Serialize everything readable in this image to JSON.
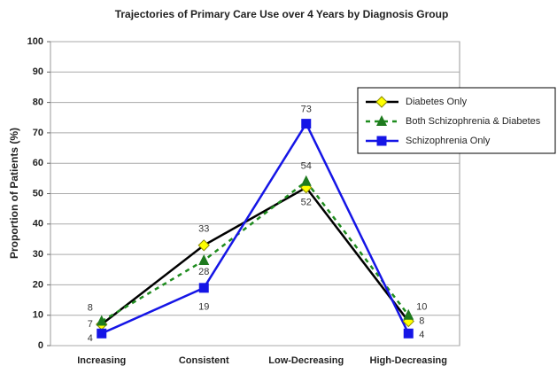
{
  "chart_data": {
    "type": "line",
    "title": "Trajectories of Primary Care Use over 4 Years by Diagnosis Group",
    "y_label": "Proportion of Patients (%)",
    "categories": [
      "Increasing",
      "Consistent",
      "Low-Decreasing",
      "High-Decreasing"
    ],
    "series": [
      {
        "name": "Diabetes Only",
        "color": "#000000",
        "marker": "diamond",
        "marker_color": "#ffff00",
        "dash": false,
        "values": [
          7,
          33,
          52,
          8
        ]
      },
      {
        "name": "Both Schizophrenia & Diabetes",
        "color": "#1e8c1e",
        "marker": "triangle",
        "marker_color": "#1e7a1e",
        "dash": true,
        "values": [
          8,
          28,
          54,
          10
        ]
      },
      {
        "name": "Schizophrenia Only",
        "color": "#1515e6",
        "marker": "square",
        "marker_color": "#1515e6",
        "dash": false,
        "values": [
          4,
          19,
          73,
          4
        ]
      }
    ],
    "ylim": [
      0,
      100
    ],
    "yticks": [
      0,
      10,
      20,
      30,
      40,
      50,
      60,
      70,
      80,
      90,
      100
    ],
    "grid": true,
    "legend": "right"
  }
}
